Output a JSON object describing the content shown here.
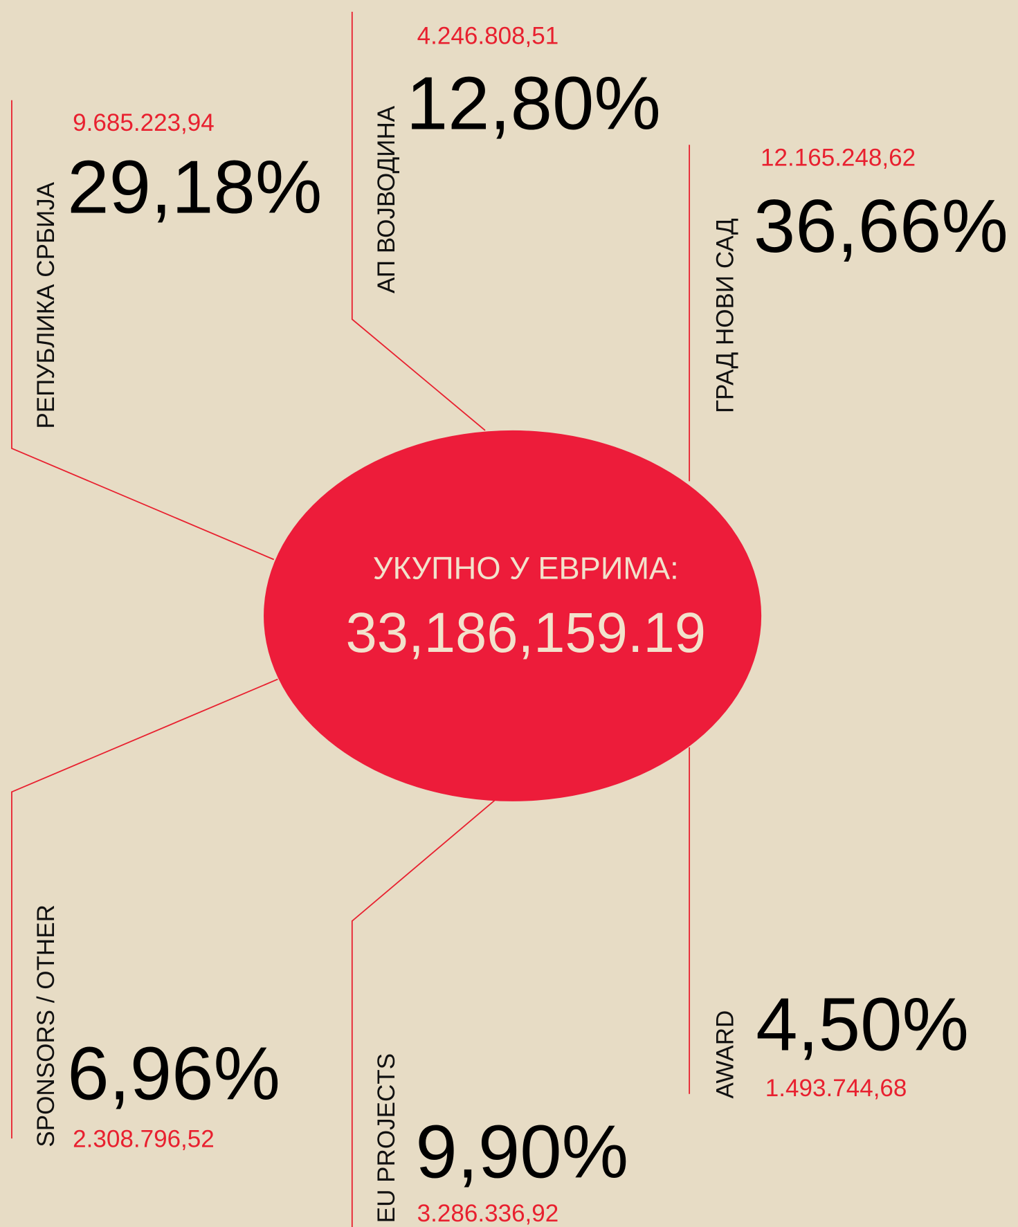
{
  "center": {
    "title": "УКУПНО У ЕВРИМА:",
    "total": "33,186,159.19"
  },
  "items": [
    {
      "label": "РЕПУБЛИКА СРБИЈА",
      "percent": "29,18%",
      "amount": "9.685.223,94"
    },
    {
      "label": "АП ВОЈВОДИНА",
      "percent": "12,80%",
      "amount": "4.246.808,51"
    },
    {
      "label": "ГРАД НОВИ САД",
      "percent": "36,66%",
      "amount": "12.165.248,62"
    },
    {
      "label": "SPONSORS / OTHER",
      "percent": "6,96%",
      "amount": "2.308.796,52"
    },
    {
      "label": "EU PROJECTS",
      "percent": "9,90%",
      "amount": "3.286.336,92"
    },
    {
      "label": "AWARD",
      "percent": "4,50%",
      "amount": "1.493.744,68"
    }
  ]
}
